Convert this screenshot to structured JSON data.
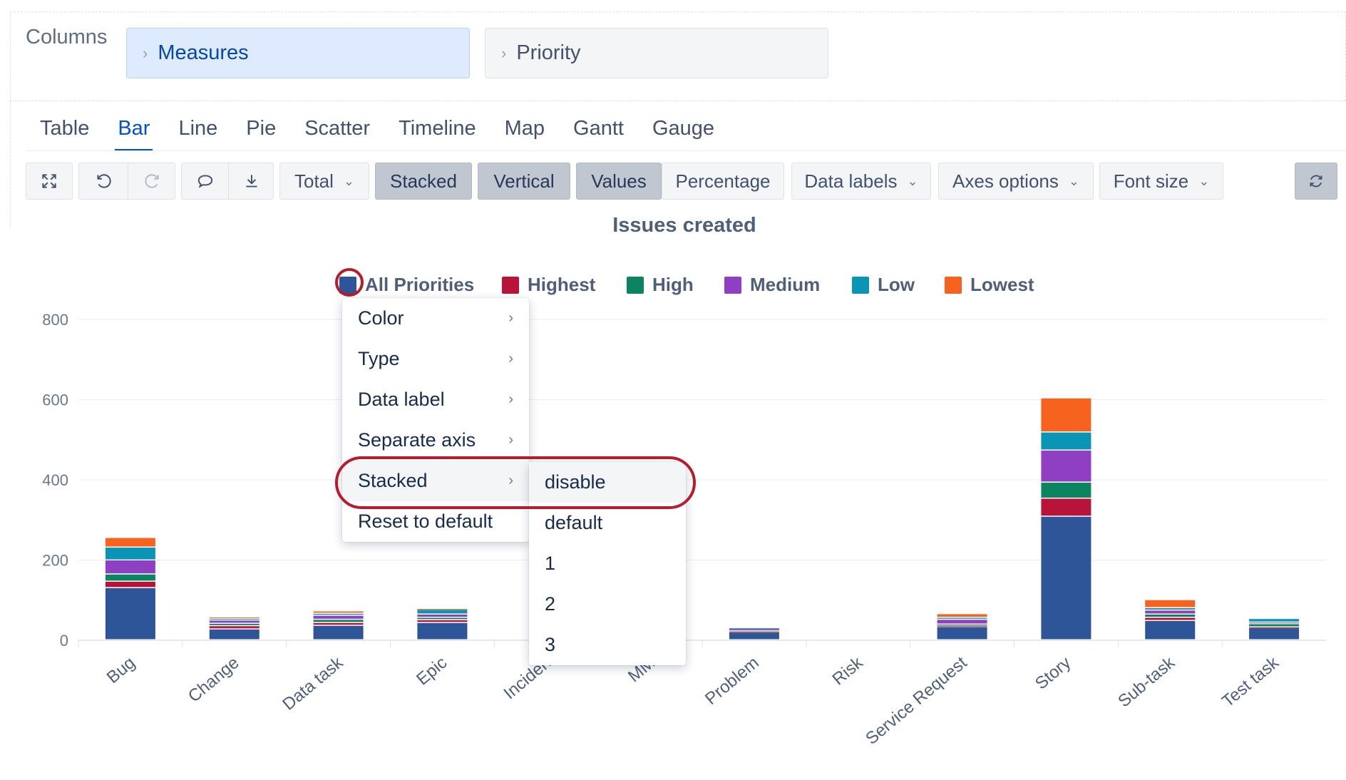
{
  "columns": {
    "label": "Columns",
    "pills": [
      {
        "label": "Measures",
        "active": true
      },
      {
        "label": "Priority",
        "active": false
      }
    ]
  },
  "tabs": [
    "Table",
    "Bar",
    "Line",
    "Pie",
    "Scatter",
    "Timeline",
    "Map",
    "Gantt",
    "Gauge"
  ],
  "active_tab": "Bar",
  "toolbar": {
    "icons": [
      "fullscreen-icon",
      "undo-icon",
      "redo-icon",
      "comment-icon",
      "download-icon",
      "refresh-icon"
    ],
    "total_label": "Total",
    "stacked_label": "Stacked",
    "vertical_label": "Vertical",
    "values_label": "Values",
    "percentage_label": "Percentage",
    "data_labels_label": "Data labels",
    "axes_options_label": "Axes options",
    "font_size_label": "Font size"
  },
  "context_menu": {
    "items": [
      "Color",
      "Type",
      "Data label",
      "Separate axis",
      "Stacked",
      "Reset to default"
    ],
    "highlighted": "Stacked",
    "submenu": {
      "items": [
        "disable",
        "default",
        "1",
        "2",
        "3"
      ],
      "highlighted": "disable"
    }
  },
  "colors": {
    "All Priorities": "#2e5597",
    "Highest": "#b8133a",
    "High": "#0a8560",
    "Medium": "#8f3fc1",
    "Low": "#0a94b5",
    "Lowest": "#f7621e",
    "highlight_ring": "#b61c2c"
  },
  "chart_data": {
    "type": "bar",
    "stacked": true,
    "orientation": "vertical",
    "title": "Issues created",
    "categories": [
      "Bug",
      "Change",
      "Data task",
      "Epic",
      "Incident",
      "MM",
      "Problem",
      "Risk",
      "Service Request",
      "Story",
      "Sub-task",
      "Test task"
    ],
    "visible_tick_labels": [
      "Bug",
      "Change",
      "Data task",
      "Epic",
      "Inciden",
      "MM",
      "Problem",
      "Risk",
      "Service Request",
      "Story",
      "Sub-task",
      "Test task"
    ],
    "series": [
      {
        "name": "All Priorities",
        "values": [
          130,
          27,
          36,
          43,
          0,
          0,
          18,
          0,
          33,
          308,
          48,
          30
        ]
      },
      {
        "name": "Highest",
        "values": [
          16,
          8,
          7,
          7,
          0,
          0,
          2,
          0,
          3,
          45,
          8,
          2
        ]
      },
      {
        "name": "High",
        "values": [
          18,
          6,
          8,
          6,
          0,
          0,
          2,
          0,
          3,
          40,
          8,
          8
        ]
      },
      {
        "name": "Medium",
        "values": [
          35,
          8,
          10,
          8,
          0,
          0,
          6,
          0,
          12,
          80,
          10,
          4
        ]
      },
      {
        "name": "Low",
        "values": [
          32,
          4,
          5,
          12,
          0,
          0,
          2,
          0,
          5,
          45,
          6,
          9
        ]
      },
      {
        "name": "Lowest",
        "values": [
          24,
          4,
          6,
          2,
          0,
          0,
          0,
          0,
          9,
          85,
          20,
          0
        ]
      }
    ],
    "yticks": [
      0,
      200,
      400,
      600,
      800
    ],
    "ylim": [
      0,
      800
    ],
    "grid": true,
    "legend_position": "top-center"
  }
}
